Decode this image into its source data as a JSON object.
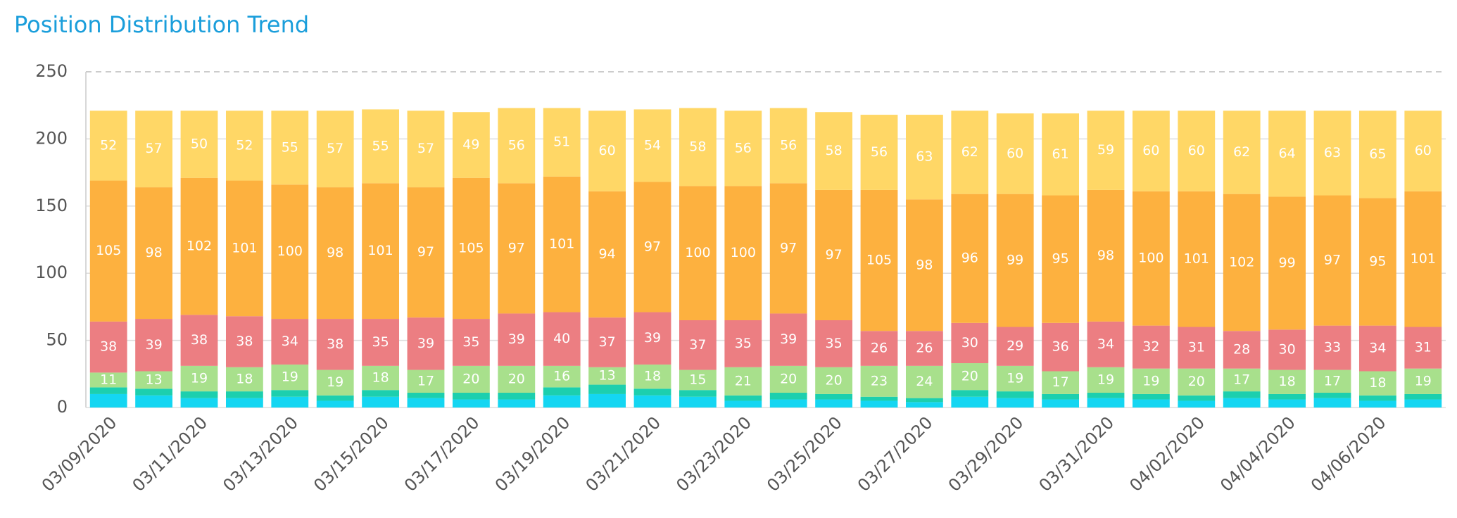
{
  "chart_data": {
    "type": "stacked_bar",
    "title": "Position Distribution Trend",
    "categories": [
      "03/09/2020",
      null,
      "03/11/2020",
      null,
      "03/13/2020",
      null,
      "03/15/2020",
      null,
      "03/17/2020",
      null,
      "03/19/2020",
      null,
      "03/21/2020",
      null,
      "03/23/2020",
      null,
      "03/25/2020",
      null,
      "03/27/2020",
      null,
      "03/29/2020",
      null,
      "03/31/2020",
      null,
      "04/02/2020",
      null,
      "04/04/2020",
      null,
      "04/06/2020",
      null
    ],
    "ylim": [
      0,
      250
    ],
    "yticks": [
      0,
      50,
      100,
      150,
      200,
      250
    ],
    "grid": true,
    "series": [
      {
        "color": "#14d6f2",
        "show_labels": false,
        "values": [
          10,
          9,
          7,
          7,
          8,
          5,
          8,
          7,
          6,
          6,
          9,
          10,
          9,
          8,
          5,
          6,
          6,
          5,
          4,
          8,
          7,
          6,
          7,
          6,
          5,
          7,
          6,
          7,
          5,
          6
        ]
      },
      {
        "color": "#1ccfae",
        "show_labels": false,
        "values": [
          5,
          5,
          5,
          5,
          5,
          4,
          5,
          4,
          5,
          5,
          6,
          7,
          5,
          5,
          4,
          5,
          4,
          3,
          3,
          5,
          5,
          4,
          4,
          4,
          4,
          5,
          4,
          4,
          4,
          4
        ]
      },
      {
        "color": "#a8e08c",
        "show_labels": true,
        "values": [
          11,
          13,
          19,
          18,
          19,
          19,
          18,
          17,
          20,
          20,
          16,
          13,
          18,
          15,
          21,
          20,
          20,
          23,
          24,
          20,
          19,
          17,
          19,
          19,
          20,
          17,
          18,
          17,
          18,
          19
        ]
      },
      {
        "color": "#ec7e82",
        "show_labels": true,
        "values": [
          38,
          39,
          38,
          38,
          34,
          38,
          35,
          39,
          35,
          39,
          40,
          37,
          39,
          37,
          35,
          39,
          35,
          26,
          26,
          30,
          29,
          36,
          34,
          32,
          31,
          28,
          30,
          33,
          34,
          31
        ]
      },
      {
        "color": "#fdb13f",
        "show_labels": true,
        "values": [
          105,
          98,
          102,
          101,
          100,
          98,
          101,
          97,
          105,
          97,
          101,
          94,
          97,
          100,
          100,
          97,
          97,
          105,
          98,
          96,
          99,
          95,
          98,
          100,
          101,
          102,
          99,
          97,
          95,
          101
        ]
      },
      {
        "color": "#ffd766",
        "show_labels": true,
        "values": [
          52,
          57,
          50,
          52,
          55,
          57,
          55,
          57,
          49,
          56,
          51,
          60,
          54,
          58,
          56,
          56,
          58,
          56,
          63,
          62,
          60,
          61,
          59,
          60,
          60,
          62,
          64,
          63,
          65,
          60
        ]
      }
    ]
  }
}
